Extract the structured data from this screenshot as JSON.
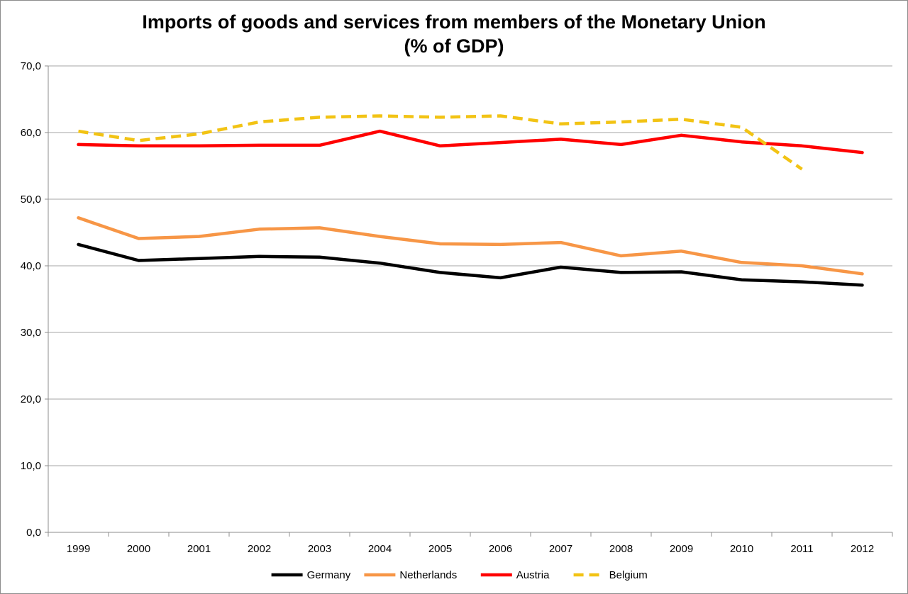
{
  "chart_data": {
    "type": "line",
    "title": "Imports of goods and services from members of the Monetary Union",
    "subtitle": "(% of GDP)",
    "xlabel": "",
    "ylabel": "",
    "ylim": [
      0,
      70
    ],
    "y_ticks": [
      "0,0",
      "10,0",
      "20,0",
      "30,0",
      "40,0",
      "50,0",
      "60,0",
      "70,0"
    ],
    "categories": [
      "1999",
      "2000",
      "2001",
      "2002",
      "2003",
      "2004",
      "2005",
      "2006",
      "2007",
      "2008",
      "2009",
      "2010",
      "2011",
      "2012"
    ],
    "grid": true,
    "legend_position": "bottom",
    "series": [
      {
        "name": "Germany",
        "color": "#000000",
        "dashed": false,
        "values": [
          43.2,
          40.8,
          41.1,
          41.4,
          41.3,
          40.4,
          39.0,
          38.2,
          39.8,
          39.0,
          39.1,
          37.9,
          37.6,
          37.1
        ]
      },
      {
        "name": "Netherlands",
        "color": "#f79646",
        "dashed": false,
        "values": [
          47.2,
          44.1,
          44.4,
          45.5,
          45.7,
          44.4,
          43.3,
          43.2,
          43.5,
          41.5,
          42.2,
          40.5,
          40.0,
          38.8
        ]
      },
      {
        "name": "Austria",
        "color": "#ff0000",
        "dashed": false,
        "values": [
          58.2,
          58.0,
          58.0,
          58.1,
          58.1,
          60.2,
          58.0,
          58.5,
          59.0,
          58.2,
          59.6,
          58.6,
          58.0,
          57.0
        ]
      },
      {
        "name": "Belgium",
        "color": "#f2c314",
        "dashed": true,
        "values": [
          60.2,
          58.8,
          59.8,
          61.6,
          62.3,
          62.5,
          62.3,
          62.5,
          61.3,
          61.6,
          62.0,
          60.8,
          54.5,
          null
        ]
      }
    ]
  }
}
